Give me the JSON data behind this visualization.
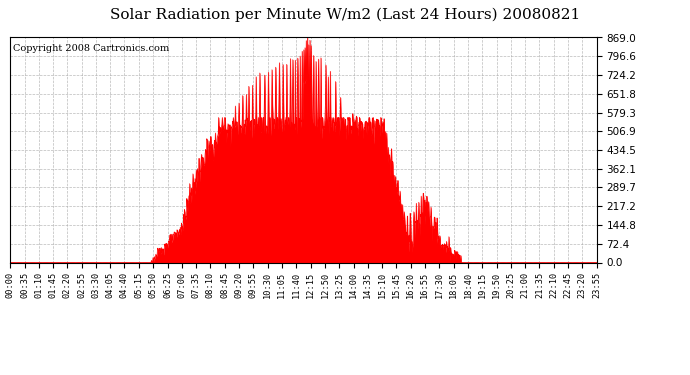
{
  "title": "Solar Radiation per Minute W/m2 (Last 24 Hours) 20080821",
  "copyright_text": "Copyright 2008 Cartronics.com",
  "y_max": 869.0,
  "y_min": 0.0,
  "y_ticks": [
    0.0,
    72.4,
    144.8,
    217.2,
    289.7,
    362.1,
    434.5,
    506.9,
    579.3,
    651.8,
    724.2,
    796.6,
    869.0
  ],
  "fill_color": "#FF0000",
  "line_color": "#FF0000",
  "bg_color": "#FFFFFF",
  "grid_color": "#AAAAAA",
  "dashed_line_color": "#FF0000",
  "title_fontsize": 11,
  "copyright_fontsize": 7,
  "x_tick_labels": [
    "00:00",
    "00:35",
    "01:10",
    "01:45",
    "02:20",
    "02:55",
    "03:30",
    "04:05",
    "04:40",
    "05:15",
    "05:50",
    "06:25",
    "07:00",
    "07:35",
    "08:10",
    "08:45",
    "09:20",
    "09:55",
    "10:30",
    "11:05",
    "11:40",
    "12:15",
    "12:50",
    "13:25",
    "14:00",
    "14:35",
    "15:10",
    "15:45",
    "16:20",
    "16:55",
    "17:30",
    "18:05",
    "18:40",
    "19:15",
    "19:50",
    "20:25",
    "21:00",
    "21:35",
    "22:10",
    "22:45",
    "23:20",
    "23:55"
  ],
  "num_points": 1440,
  "figsize": [
    6.9,
    3.75
  ],
  "dpi": 100
}
